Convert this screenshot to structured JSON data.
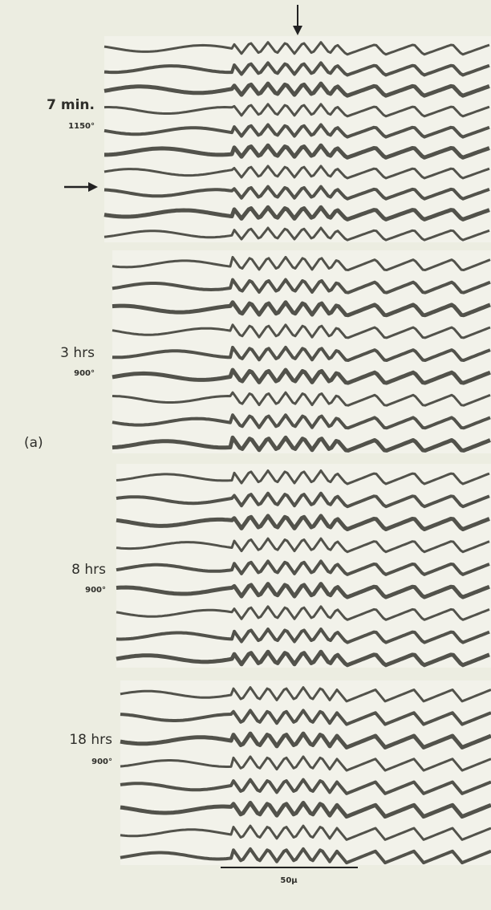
{
  "figure": {
    "label": "(a)",
    "panels": [
      {
        "time": "7 min.",
        "temperature": "1150°"
      },
      {
        "time": "3 hrs",
        "temperature": "900°"
      },
      {
        "time": "8 hrs",
        "temperature": "900°"
      },
      {
        "time": "18 hrs",
        "temperature": "900°"
      }
    ],
    "scale_bar": "50μ"
  }
}
